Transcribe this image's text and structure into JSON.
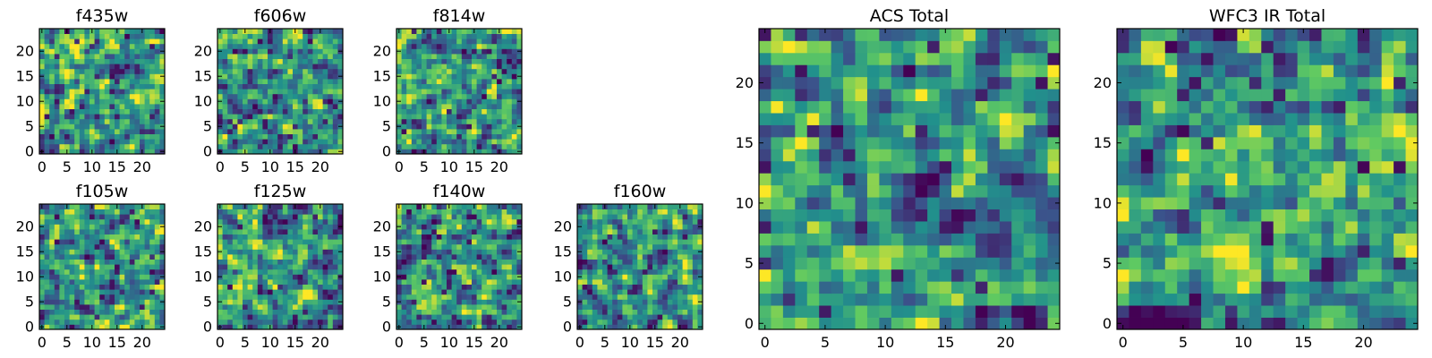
{
  "chart_data": [
    {
      "type": "heatmap",
      "title": "f435w",
      "grid_size": 25,
      "xlim": [
        -0.5,
        24.5
      ],
      "ylim": [
        -0.5,
        24.5
      ],
      "xticks": [
        0,
        5,
        10,
        15,
        20
      ],
      "yticks": [
        0,
        5,
        10,
        15,
        20
      ],
      "xlabel": "",
      "ylabel": "",
      "colormap": "viridis",
      "seed": 11
    },
    {
      "type": "heatmap",
      "title": "f606w",
      "grid_size": 25,
      "xlim": [
        -0.5,
        24.5
      ],
      "ylim": [
        -0.5,
        24.5
      ],
      "xticks": [
        0,
        5,
        10,
        15,
        20
      ],
      "yticks": [
        0,
        5,
        10,
        15,
        20
      ],
      "xlabel": "",
      "ylabel": "",
      "colormap": "viridis",
      "seed": 23
    },
    {
      "type": "heatmap",
      "title": "f814w",
      "grid_size": 25,
      "xlim": [
        -0.5,
        24.5
      ],
      "ylim": [
        -0.5,
        24.5
      ],
      "xticks": [
        0,
        5,
        10,
        15,
        20
      ],
      "yticks": [
        0,
        5,
        10,
        15,
        20
      ],
      "xlabel": "",
      "ylabel": "",
      "colormap": "viridis",
      "seed": 37
    },
    {
      "type": "heatmap",
      "title": "f105w",
      "grid_size": 25,
      "xlim": [
        -0.5,
        24.5
      ],
      "ylim": [
        -0.5,
        24.5
      ],
      "xticks": [
        0,
        5,
        10,
        15,
        20
      ],
      "yticks": [
        0,
        5,
        10,
        15,
        20
      ],
      "xlabel": "",
      "ylabel": "",
      "colormap": "viridis",
      "seed": 41
    },
    {
      "type": "heatmap",
      "title": "f125w",
      "grid_size": 25,
      "xlim": [
        -0.5,
        24.5
      ],
      "ylim": [
        -0.5,
        24.5
      ],
      "xticks": [
        0,
        5,
        10,
        15,
        20
      ],
      "yticks": [
        0,
        5,
        10,
        15,
        20
      ],
      "xlabel": "",
      "ylabel": "",
      "colormap": "viridis",
      "seed": 53
    },
    {
      "type": "heatmap",
      "title": "f140w",
      "grid_size": 25,
      "xlim": [
        -0.5,
        24.5
      ],
      "ylim": [
        -0.5,
        24.5
      ],
      "xticks": [
        0,
        5,
        10,
        15,
        20
      ],
      "yticks": [
        0,
        5,
        10,
        15,
        20
      ],
      "xlabel": "",
      "ylabel": "",
      "colormap": "viridis",
      "seed": 67
    },
    {
      "type": "heatmap",
      "title": "f160w",
      "grid_size": 25,
      "xlim": [
        -0.5,
        24.5
      ],
      "ylim": [
        -0.5,
        24.5
      ],
      "xticks": [
        0,
        5,
        10,
        15,
        20
      ],
      "yticks": [
        0,
        5,
        10,
        15,
        20
      ],
      "xlabel": "",
      "ylabel": "",
      "colormap": "viridis",
      "seed": 79
    },
    {
      "type": "heatmap",
      "title": "ACS Total",
      "grid_size": 25,
      "xlim": [
        -0.5,
        24.5
      ],
      "ylim": [
        -0.5,
        24.5
      ],
      "xticks": [
        0,
        5,
        10,
        15,
        20
      ],
      "yticks": [
        0,
        5,
        10,
        15,
        20
      ],
      "xlabel": "",
      "ylabel": "",
      "colormap": "viridis",
      "seed": 83
    },
    {
      "type": "heatmap",
      "title": "WFC3 IR Total",
      "grid_size": 25,
      "xlim": [
        -0.5,
        24.5
      ],
      "ylim": [
        -0.5,
        24.5
      ],
      "xticks": [
        0,
        5,
        10,
        15,
        20
      ],
      "yticks": [
        0,
        5,
        10,
        15,
        20
      ],
      "xlabel": "",
      "ylabel": "",
      "colormap": "viridis",
      "seed": 97
    }
  ],
  "colors": {
    "background": "#ffffff",
    "frame": "#000000",
    "viridis": [
      "#440154",
      "#3b528b",
      "#21918c",
      "#5ec962",
      "#fde725"
    ]
  }
}
